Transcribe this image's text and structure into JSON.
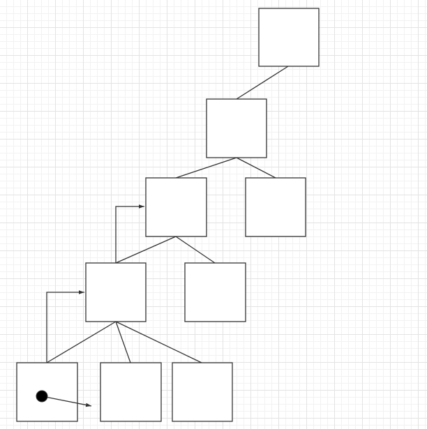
{
  "diagram": {
    "kind": "tree",
    "colors": {
      "background": "#ffffff",
      "grid_major": "#e3e3e3",
      "grid_minor": "#f2f2f2",
      "node_fill": "#ffffff",
      "stroke": "#333333",
      "marker_fill": "#000000"
    },
    "nodes": [
      {
        "id": "n1",
        "label": ""
      },
      {
        "id": "n2",
        "label": ""
      },
      {
        "id": "n3",
        "label": ""
      },
      {
        "id": "n4",
        "label": ""
      },
      {
        "id": "n5",
        "label": ""
      },
      {
        "id": "n6",
        "label": ""
      },
      {
        "id": "n7",
        "label": ""
      },
      {
        "id": "n8",
        "label": ""
      },
      {
        "id": "n9",
        "label": ""
      }
    ],
    "edges": [
      {
        "from": "n1",
        "to": "n2",
        "style": "line"
      },
      {
        "from": "n2",
        "to": "n3",
        "style": "line"
      },
      {
        "from": "n2",
        "to": "n4",
        "style": "line"
      },
      {
        "from": "n3",
        "to": "n5",
        "style": "line"
      },
      {
        "from": "n3",
        "to": "n6",
        "style": "line"
      },
      {
        "from": "n5",
        "to": "n7",
        "style": "line"
      },
      {
        "from": "n5",
        "to": "n8",
        "style": "line"
      },
      {
        "from": "n5",
        "to": "n9",
        "style": "line"
      },
      {
        "from": "n5",
        "to": "n3",
        "style": "elbow-arrow"
      },
      {
        "from": "n7",
        "to": "n5",
        "style": "elbow-arrow"
      }
    ],
    "pointer": {
      "in_node": "n7",
      "style": "dot-arrow"
    }
  }
}
